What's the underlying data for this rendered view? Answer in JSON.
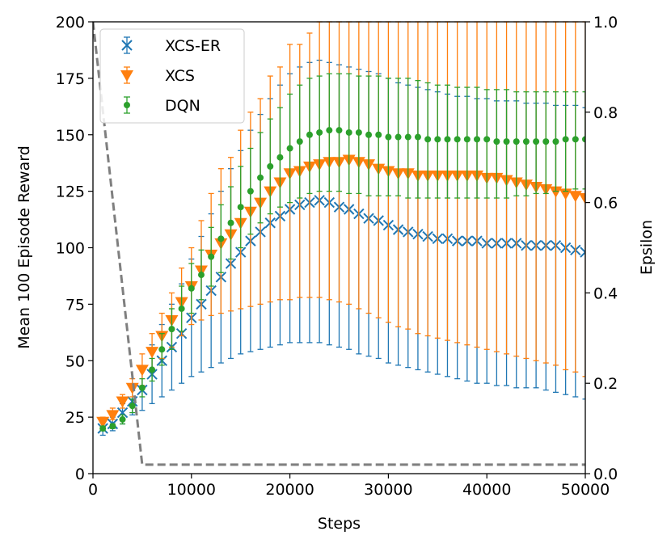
{
  "chart_data": {
    "type": "line",
    "title": "",
    "xlabel": "Steps",
    "ylabel": "Mean 100 Episode Reward",
    "y2label": "Epsilon",
    "xlim": [
      0,
      50000
    ],
    "ylim": [
      0,
      200
    ],
    "y2lim": [
      0,
      1.0
    ],
    "xticks": [
      0,
      10000,
      20000,
      30000,
      40000,
      50000
    ],
    "yticks": [
      0,
      25,
      50,
      75,
      100,
      125,
      150,
      175,
      200
    ],
    "y2ticks": [
      0.0,
      0.2,
      0.4,
      0.6,
      0.8,
      1.0
    ],
    "x_tick_labels": [
      "0",
      "10000",
      "20000",
      "30000",
      "40000",
      "50000"
    ],
    "y_tick_labels": [
      "0",
      "25",
      "50",
      "75",
      "100",
      "125",
      "150",
      "175",
      "200"
    ],
    "y2_tick_labels": [
      "0.0",
      "0.2",
      "0.4",
      "0.6",
      "0.8",
      "1.0"
    ],
    "legend_position": "top-left",
    "x": [
      1000,
      2000,
      3000,
      4000,
      5000,
      6000,
      7000,
      8000,
      9000,
      10000,
      11000,
      12000,
      13000,
      14000,
      15000,
      16000,
      17000,
      18000,
      19000,
      20000,
      21000,
      22000,
      23000,
      24000,
      25000,
      26000,
      27000,
      28000,
      29000,
      30000,
      31000,
      32000,
      33000,
      34000,
      35000,
      36000,
      37000,
      38000,
      39000,
      40000,
      41000,
      42000,
      43000,
      44000,
      45000,
      46000,
      47000,
      48000,
      49000,
      50000
    ],
    "series": [
      {
        "name": "XCS-ER",
        "color": "#1f77b4",
        "marker": "x",
        "values": [
          20,
          22,
          27,
          32,
          37,
          44,
          50,
          56,
          62,
          69,
          75,
          81,
          87,
          93,
          98,
          103,
          107,
          111,
          114,
          117,
          119,
          120,
          121,
          120,
          118,
          117,
          115,
          113,
          112,
          110,
          108,
          107,
          106,
          105,
          104,
          104,
          103,
          103,
          103,
          102,
          102,
          102,
          102,
          101,
          101,
          101,
          101,
          100,
          99,
          98
        ],
        "err_low": [
          17,
          19,
          22,
          26,
          28,
          31,
          34,
          37,
          40,
          43,
          45,
          47,
          49,
          51,
          53,
          54,
          55,
          56,
          57,
          58,
          58,
          58,
          58,
          57,
          56,
          55,
          53,
          52,
          51,
          49,
          48,
          47,
          46,
          45,
          44,
          43,
          42,
          41,
          40,
          40,
          39,
          39,
          38,
          38,
          38,
          37,
          36,
          35,
          34,
          33
        ],
        "err_high": [
          23,
          25,
          31,
          38,
          46,
          57,
          66,
          75,
          84,
          95,
          105,
          115,
          125,
          135,
          143,
          152,
          159,
          166,
          172,
          177,
          180,
          182,
          183,
          182,
          181,
          180,
          179,
          178,
          177,
          175,
          173,
          172,
          171,
          170,
          169,
          168,
          167,
          167,
          166,
          166,
          165,
          165,
          165,
          164,
          164,
          164,
          163,
          163,
          163,
          162
        ]
      },
      {
        "name": "XCS",
        "color": "#ff7f0e",
        "marker": "triangle-down",
        "values": [
          23,
          26,
          32,
          38,
          46,
          54,
          61,
          68,
          76,
          83,
          90,
          97,
          102,
          106,
          111,
          116,
          120,
          125,
          129,
          133,
          134,
          136,
          137,
          138,
          138,
          139,
          138,
          137,
          135,
          134,
          133,
          133,
          132,
          132,
          132,
          132,
          132,
          132,
          132,
          131,
          131,
          130,
          129,
          128,
          127,
          126,
          125,
          124,
          123,
          122
        ],
        "err_low": [
          21,
          24,
          29,
          34,
          39,
          46,
          51,
          56,
          61,
          66,
          68,
          70,
          71,
          72,
          73,
          74,
          75,
          76,
          77,
          77,
          78,
          78,
          78,
          77,
          76,
          75,
          73,
          71,
          69,
          67,
          65,
          64,
          62,
          61,
          60,
          59,
          58,
          57,
          56,
          55,
          54,
          53,
          52,
          51,
          50,
          49,
          48,
          46,
          45,
          43
        ],
        "err_high": [
          25,
          29,
          35,
          42,
          53,
          62,
          71,
          80,
          91,
          100,
          112,
          124,
          135,
          140,
          152,
          160,
          166,
          176,
          180,
          190,
          190,
          195,
          200,
          200,
          200,
          200,
          200,
          200,
          200,
          200,
          200,
          200,
          200,
          200,
          200,
          200,
          200,
          200,
          200,
          200,
          200,
          200,
          200,
          200,
          200,
          200,
          200,
          200,
          200,
          200
        ]
      },
      {
        "name": "DQN",
        "color": "#2ca02c",
        "marker": "circle",
        "values": [
          20,
          21,
          24,
          30,
          38,
          46,
          55,
          64,
          73,
          82,
          88,
          96,
          104,
          111,
          118,
          125,
          131,
          136,
          140,
          144,
          147,
          150,
          151,
          152,
          152,
          151,
          151,
          150,
          150,
          149,
          149,
          149,
          149,
          148,
          148,
          148,
          148,
          148,
          148,
          148,
          147,
          147,
          147,
          147,
          147,
          147,
          147,
          148,
          148,
          148
        ],
        "err_low": [
          19,
          20,
          22,
          27,
          34,
          41,
          48,
          55,
          63,
          71,
          77,
          83,
          89,
          95,
          100,
          106,
          111,
          115,
          118,
          120,
          122,
          124,
          125,
          125,
          125,
          124,
          124,
          123,
          123,
          123,
          123,
          122,
          122,
          122,
          122,
          122,
          122,
          122,
          122,
          122,
          122,
          122,
          123,
          123,
          124,
          124,
          125,
          125,
          126,
          126
        ],
        "err_high": [
          21,
          22,
          26,
          33,
          42,
          51,
          62,
          73,
          83,
          93,
          99,
          109,
          119,
          127,
          136,
          144,
          151,
          157,
          162,
          168,
          172,
          175,
          176,
          177,
          177,
          177,
          176,
          176,
          176,
          175,
          175,
          175,
          174,
          173,
          172,
          172,
          171,
          171,
          171,
          170,
          170,
          170,
          169,
          169,
          169,
          169,
          169,
          169,
          169,
          169
        ]
      },
      {
        "name": "Epsilon",
        "color": "#7f7f7f",
        "line_style": "dashed",
        "axis": "y2",
        "legend": false,
        "x": [
          0,
          5000,
          50000
        ],
        "values": [
          1.0,
          0.02,
          0.02
        ]
      }
    ]
  }
}
